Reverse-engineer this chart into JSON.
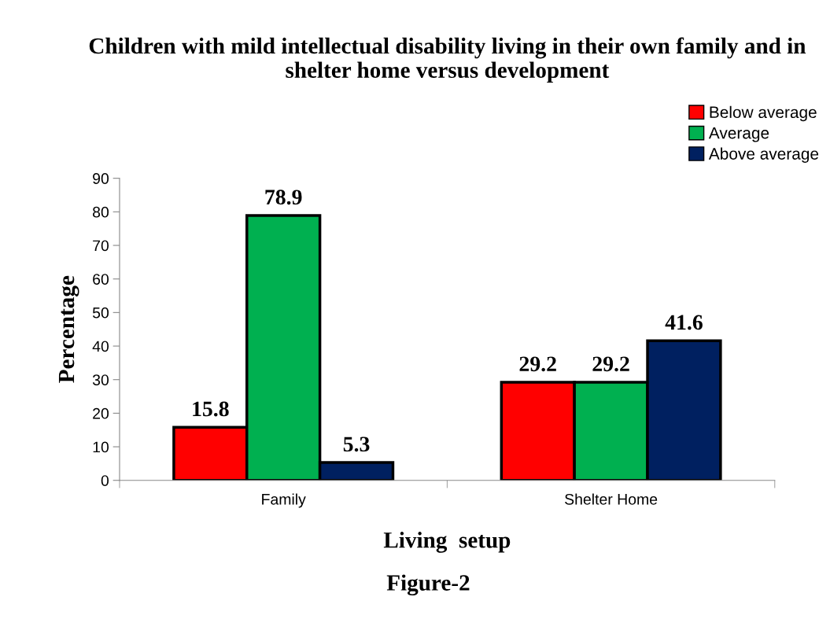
{
  "chart_data": {
    "type": "bar",
    "title": "Children with mild intellectual disability living in their own family and in shelter home versus development",
    "xlabel": "Living  setup",
    "ylabel": "Percentage",
    "categories": [
      "Family",
      "Shelter Home"
    ],
    "series": [
      {
        "name": "Below average",
        "color": "#ff0000",
        "values": [
          15.8,
          29.2
        ]
      },
      {
        "name": "Average",
        "color": "#00b050",
        "values": [
          78.9,
          29.2
        ]
      },
      {
        "name": "Above average",
        "color": "#002060",
        "values": [
          5.3,
          41.6
        ]
      }
    ],
    "ylim": [
      0,
      90
    ],
    "yticks": [
      0,
      10,
      20,
      30,
      40,
      50,
      60,
      70,
      80,
      90
    ],
    "data_labels": true,
    "legend": "top right",
    "grid": false,
    "annotations": [
      "Figure-2"
    ]
  }
}
